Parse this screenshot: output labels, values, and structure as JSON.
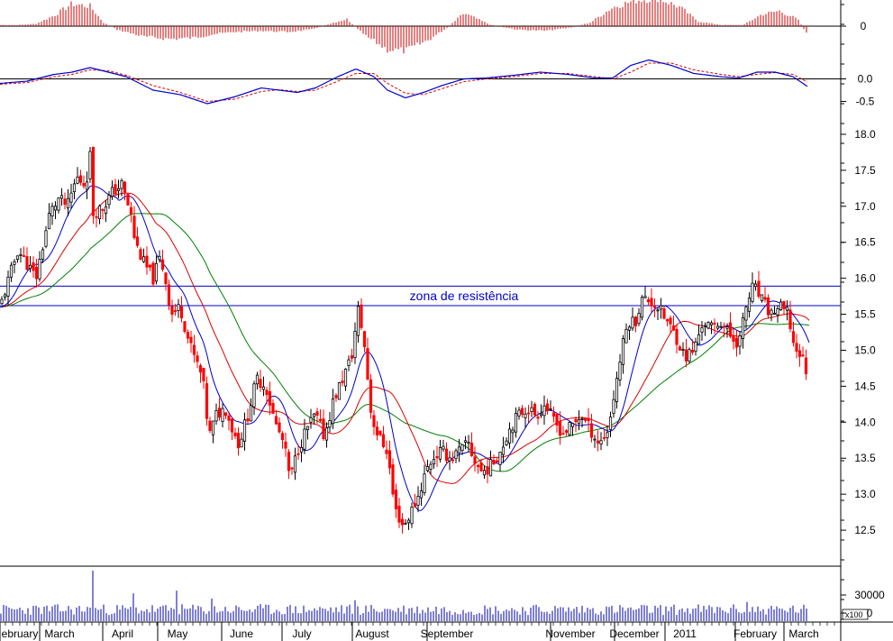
{
  "chart_data": {
    "type": "candlestick",
    "main": {
      "ylim": [
        12.0,
        18.3
      ],
      "yticks": [
        12.5,
        13.0,
        13.5,
        14.0,
        14.5,
        15.0,
        15.5,
        16.0,
        16.5,
        17.0,
        17.5,
        18.0
      ],
      "ytick_labels": [
        "12.5",
        "13.0",
        "13.5",
        "14.0",
        "14.5",
        "15.0",
        "15.5",
        "16.0",
        "16.5",
        "17.0",
        "17.5",
        "18.0"
      ],
      "resistance_zone": {
        "low": 15.62,
        "high": 15.89,
        "label": "zona de resistência"
      },
      "moving_average_colors": {
        "fast": "#0000cc",
        "medium": "#dd0000",
        "slow": "#008000"
      },
      "candle_colors": {
        "up": "#000000",
        "down": "#ff0000"
      },
      "close_path": [
        [
          0,
          15.6
        ],
        [
          10,
          16.0
        ],
        [
          20,
          16.4
        ],
        [
          30,
          16.2
        ],
        [
          40,
          16.0
        ],
        [
          45,
          16.3
        ],
        [
          55,
          16.9
        ],
        [
          65,
          17.1
        ],
        [
          75,
          17.0
        ],
        [
          85,
          17.4
        ],
        [
          95,
          17.3
        ],
        [
          100,
          17.7
        ],
        [
          103,
          16.9
        ],
        [
          115,
          17.0
        ],
        [
          125,
          17.2
        ],
        [
          135,
          17.3
        ],
        [
          145,
          16.9
        ],
        [
          150,
          16.5
        ],
        [
          160,
          16.2
        ],
        [
          170,
          16.0
        ],
        [
          178,
          16.3
        ],
        [
          185,
          15.9
        ],
        [
          190,
          15.5
        ],
        [
          200,
          15.6
        ],
        [
          210,
          15.1
        ],
        [
          225,
          14.6
        ],
        [
          232,
          13.8
        ],
        [
          240,
          14.1
        ],
        [
          250,
          14.2
        ],
        [
          258,
          13.9
        ],
        [
          265,
          13.7
        ],
        [
          275,
          14.1
        ],
        [
          285,
          14.6
        ],
        [
          295,
          14.5
        ],
        [
          305,
          14.0
        ],
        [
          315,
          13.7
        ],
        [
          322,
          13.2
        ],
        [
          330,
          13.6
        ],
        [
          340,
          13.9
        ],
        [
          350,
          14.1
        ],
        [
          360,
          13.8
        ],
        [
          370,
          14.3
        ],
        [
          380,
          14.6
        ],
        [
          390,
          14.9
        ],
        [
          398,
          15.6
        ],
        [
          405,
          15.0
        ],
        [
          412,
          14.1
        ],
        [
          420,
          13.8
        ],
        [
          430,
          13.6
        ],
        [
          438,
          12.8
        ],
        [
          448,
          12.55
        ],
        [
          458,
          12.8
        ],
        [
          465,
          13.0
        ],
        [
          472,
          13.3
        ],
        [
          480,
          13.5
        ],
        [
          490,
          13.6
        ],
        [
          500,
          13.5
        ],
        [
          510,
          13.6
        ],
        [
          520,
          13.7
        ],
        [
          525,
          13.5
        ],
        [
          535,
          13.3
        ],
        [
          545,
          13.4
        ],
        [
          555,
          13.6
        ],
        [
          565,
          13.9
        ],
        [
          575,
          14.1
        ],
        [
          585,
          14.2
        ],
        [
          595,
          14.1
        ],
        [
          605,
          14.25
        ],
        [
          615,
          14.0
        ],
        [
          625,
          13.85
        ],
        [
          635,
          13.95
        ],
        [
          645,
          14.1
        ],
        [
          655,
          13.9
        ],
        [
          665,
          13.7
        ],
        [
          675,
          13.9
        ],
        [
          683,
          14.5
        ],
        [
          690,
          15.0
        ],
        [
          697,
          15.4
        ],
        [
          705,
          15.4
        ],
        [
          712,
          15.7
        ],
        [
          720,
          15.7
        ],
        [
          730,
          15.6
        ],
        [
          740,
          15.4
        ],
        [
          750,
          15.2
        ],
        [
          760,
          14.9
        ],
        [
          770,
          15.0
        ],
        [
          780,
          15.4
        ],
        [
          790,
          15.3
        ],
        [
          800,
          15.4
        ],
        [
          810,
          15.2
        ],
        [
          820,
          15.1
        ],
        [
          828,
          15.6
        ],
        [
          836,
          15.9
        ],
        [
          845,
          15.7
        ],
        [
          855,
          15.5
        ],
        [
          865,
          15.6
        ],
        [
          875,
          15.5
        ],
        [
          880,
          15.1
        ],
        [
          885,
          15.0
        ],
        [
          890,
          14.9
        ],
        [
          898,
          14.6
        ]
      ]
    },
    "histogram": {
      "ylim": [
        -1.0,
        1.0
      ],
      "yticks": [
        0
      ],
      "ytick_labels": [
        "0"
      ],
      "color": "#cc0000",
      "path": [
        [
          0,
          0.05
        ],
        [
          20,
          0.05
        ],
        [
          40,
          0.1
        ],
        [
          60,
          0.45
        ],
        [
          80,
          0.95
        ],
        [
          100,
          0.85
        ],
        [
          115,
          0.15
        ],
        [
          130,
          -0.15
        ],
        [
          160,
          -0.45
        ],
        [
          190,
          -0.55
        ],
        [
          215,
          -0.5
        ],
        [
          235,
          -0.35
        ],
        [
          260,
          -0.25
        ],
        [
          290,
          -0.2
        ],
        [
          320,
          -0.25
        ],
        [
          345,
          -0.15
        ],
        [
          370,
          0.15
        ],
        [
          385,
          0.3
        ],
        [
          405,
          -0.4
        ],
        [
          430,
          -1.0
        ],
        [
          450,
          -1.05
        ],
        [
          475,
          -0.6
        ],
        [
          495,
          -0.1
        ],
        [
          515,
          0.55
        ],
        [
          530,
          0.3
        ],
        [
          545,
          0.05
        ],
        [
          575,
          -0.15
        ],
        [
          605,
          -0.2
        ],
        [
          635,
          -0.05
        ],
        [
          655,
          0.15
        ],
        [
          680,
          0.8
        ],
        [
          705,
          1.1
        ],
        [
          730,
          1.2
        ],
        [
          755,
          0.8
        ],
        [
          775,
          0.2
        ],
        [
          800,
          0.05
        ],
        [
          825,
          0.05
        ],
        [
          845,
          0.5
        ],
        [
          865,
          0.65
        ],
        [
          885,
          0.3
        ],
        [
          897,
          -0.4
        ]
      ]
    },
    "oscillator": {
      "ylim": [
        -0.75,
        0.55
      ],
      "yticks": [
        0.0,
        -0.5
      ],
      "ytick_labels": [
        "0.0",
        "-0.5"
      ],
      "line_color": "#0000cc",
      "signal_color": "#dd0000",
      "line_path": [
        [
          0,
          -0.1
        ],
        [
          30,
          -0.05
        ],
        [
          60,
          0.1
        ],
        [
          80,
          0.15
        ],
        [
          100,
          0.25
        ],
        [
          120,
          0.15
        ],
        [
          140,
          0.05
        ],
        [
          170,
          -0.25
        ],
        [
          200,
          -0.35
        ],
        [
          230,
          -0.55
        ],
        [
          260,
          -0.4
        ],
        [
          290,
          -0.2
        ],
        [
          310,
          -0.25
        ],
        [
          330,
          -0.3
        ],
        [
          350,
          -0.2
        ],
        [
          375,
          0.05
        ],
        [
          395,
          0.22
        ],
        [
          415,
          0.05
        ],
        [
          430,
          -0.25
        ],
        [
          450,
          -0.42
        ],
        [
          470,
          -0.3
        ],
        [
          490,
          -0.15
        ],
        [
          515,
          0.0
        ],
        [
          540,
          0.02
        ],
        [
          570,
          0.08
        ],
        [
          600,
          0.15
        ],
        [
          630,
          0.1
        ],
        [
          660,
          0.02
        ],
        [
          680,
          0.02
        ],
        [
          700,
          0.3
        ],
        [
          720,
          0.42
        ],
        [
          745,
          0.3
        ],
        [
          770,
          0.12
        ],
        [
          800,
          0.05
        ],
        [
          820,
          0.02
        ],
        [
          840,
          0.15
        ],
        [
          860,
          0.15
        ],
        [
          880,
          0.05
        ],
        [
          897,
          -0.18
        ]
      ],
      "signal_path": [
        [
          0,
          -0.12
        ],
        [
          30,
          -0.08
        ],
        [
          60,
          0.05
        ],
        [
          80,
          0.1
        ],
        [
          100,
          0.2
        ],
        [
          120,
          0.18
        ],
        [
          140,
          0.08
        ],
        [
          170,
          -0.15
        ],
        [
          200,
          -0.3
        ],
        [
          230,
          -0.5
        ],
        [
          260,
          -0.45
        ],
        [
          290,
          -0.28
        ],
        [
          310,
          -0.24
        ],
        [
          330,
          -0.28
        ],
        [
          350,
          -0.25
        ],
        [
          375,
          -0.05
        ],
        [
          395,
          0.12
        ],
        [
          415,
          0.12
        ],
        [
          430,
          -0.1
        ],
        [
          450,
          -0.32
        ],
        [
          470,
          -0.35
        ],
        [
          490,
          -0.22
        ],
        [
          515,
          -0.06
        ],
        [
          540,
          0.0
        ],
        [
          570,
          0.05
        ],
        [
          600,
          0.12
        ],
        [
          630,
          0.12
        ],
        [
          660,
          0.05
        ],
        [
          680,
          0.0
        ],
        [
          700,
          0.15
        ],
        [
          720,
          0.35
        ],
        [
          745,
          0.35
        ],
        [
          770,
          0.2
        ],
        [
          800,
          0.1
        ],
        [
          820,
          0.05
        ],
        [
          840,
          0.1
        ],
        [
          860,
          0.14
        ],
        [
          880,
          0.1
        ],
        [
          897,
          -0.08
        ]
      ]
    },
    "volume": {
      "ylim": [
        0,
        60000
      ],
      "yticks": [
        30000,
        0
      ],
      "ytick_labels": [
        "30000",
        "0"
      ],
      "multiplier_label": "x100",
      "color": "#0000aa",
      "spikes": [
        [
          103,
          58000
        ],
        [
          149,
          32000
        ],
        [
          197,
          35000
        ],
        [
          234,
          26000
        ],
        [
          395,
          24000
        ],
        [
          828,
          22000
        ]
      ],
      "baseline": 14000
    },
    "x_axis": {
      "labels": [
        {
          "text": "ebruary",
          "x": 22
        },
        {
          "text": "March",
          "x": 66
        },
        {
          "text": "April",
          "x": 136
        },
        {
          "text": "May",
          "x": 197
        },
        {
          "text": "June",
          "x": 268
        },
        {
          "text": "July",
          "x": 335
        },
        {
          "text": "August",
          "x": 413
        },
        {
          "text": "September",
          "x": 496
        },
        {
          "text": "November",
          "x": 633
        },
        {
          "text": "December",
          "x": 704
        },
        {
          "text": "2011",
          "x": 760
        },
        {
          "text": "February",
          "x": 838
        },
        {
          "text": "March",
          "x": 892
        }
      ]
    }
  }
}
